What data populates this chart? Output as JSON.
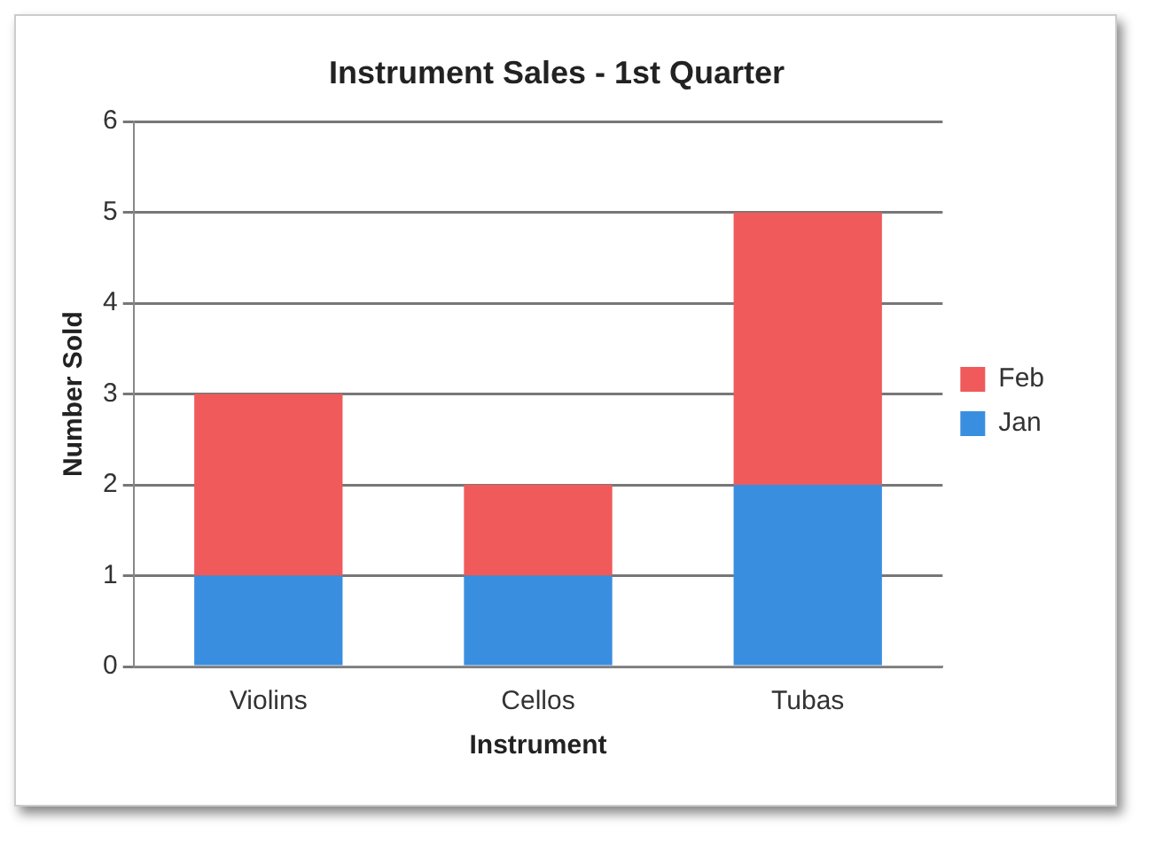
{
  "chart_data": {
    "type": "bar",
    "title": "Instrument Sales - 1st Quarter",
    "xlabel": "Instrument",
    "ylabel": "Number Sold",
    "categories": [
      "Violins",
      "Cellos",
      "Tubas"
    ],
    "stacked": true,
    "series": [
      {
        "name": "Jan",
        "color": "#3a8ee0",
        "values": [
          1,
          1,
          2
        ]
      },
      {
        "name": "Feb",
        "color": "#f05a5a",
        "values": [
          2,
          1,
          3
        ]
      }
    ],
    "ylim": [
      0,
      6
    ],
    "yticks": [
      0,
      1,
      2,
      3,
      4,
      5,
      6
    ],
    "grid": "y",
    "legend": "right"
  }
}
